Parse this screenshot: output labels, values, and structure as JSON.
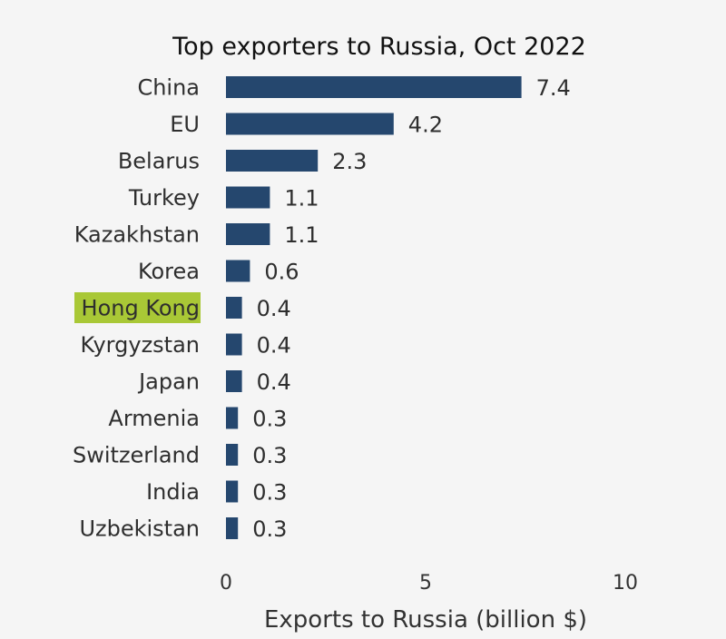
{
  "chart_data": {
    "type": "bar",
    "orientation": "horizontal",
    "title": "Top exporters to Russia, Oct 2022",
    "xlabel": "Exports to Russia (billion $)",
    "ylabel": "",
    "xlim": [
      0,
      10
    ],
    "xticks": [
      "0",
      "5",
      "10"
    ],
    "grid": false,
    "categories": [
      "China",
      "EU",
      "Belarus",
      "Turkey",
      "Kazakhstan",
      "Korea",
      "Hong Kong",
      "Kyrgyzstan",
      "Japan",
      "Armenia",
      "Switzerland",
      "India",
      "Uzbekistan"
    ],
    "values": [
      7.4,
      4.2,
      2.3,
      1.1,
      1.1,
      0.6,
      0.4,
      0.4,
      0.4,
      0.3,
      0.3,
      0.3,
      0.3
    ],
    "value_labels": [
      "7.4",
      "4.2",
      "2.3",
      "1.1",
      "1.1",
      "0.6",
      "0.4",
      "0.4",
      "0.4",
      "0.3",
      "0.3",
      "0.3",
      "0.3"
    ],
    "highlighted_category": "Hong Kong",
    "colors": {
      "bar": "#25476e",
      "highlight": "#a9c836",
      "background": "#f5f5f5"
    }
  }
}
